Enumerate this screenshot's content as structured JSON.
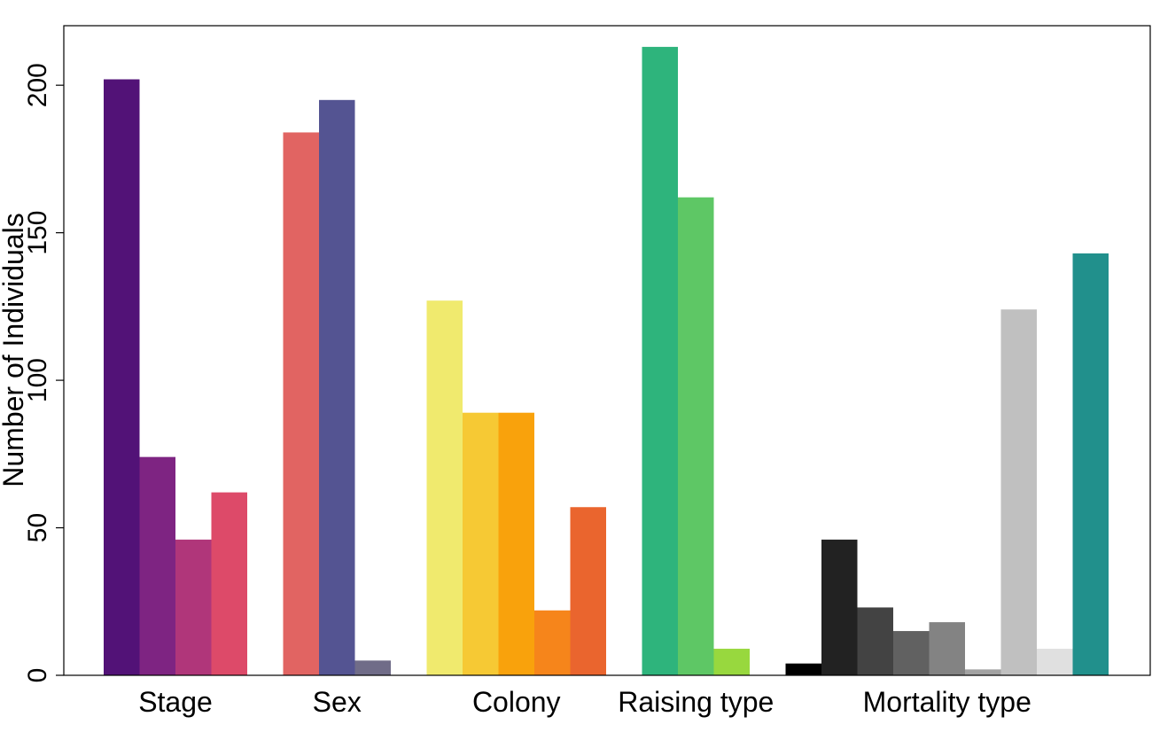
{
  "chart_data": {
    "type": "bar",
    "title": "",
    "xlabel": "",
    "ylabel": "Number of Individuals",
    "ylim": [
      0,
      220
    ],
    "yticks": [
      0,
      50,
      100,
      150,
      200
    ],
    "grid": false,
    "legend": "none",
    "groups": [
      {
        "label": "Stage",
        "values": [
          202,
          74,
          46,
          62
        ],
        "colors": [
          "#521277",
          "#7e2482",
          "#b0367a",
          "#dd4a69"
        ]
      },
      {
        "label": "Sex",
        "values": [
          184,
          195,
          5
        ],
        "colors": [
          "#e16462",
          "#545492",
          "#706c88"
        ]
      },
      {
        "label": "Colony",
        "values": [
          127,
          89,
          89,
          22,
          57
        ],
        "colors": [
          "#f0ea6e",
          "#f6c934",
          "#f9a20c",
          "#f6851b",
          "#ea652e"
        ]
      },
      {
        "label": "Raising type",
        "values": [
          213,
          162,
          9
        ],
        "colors": [
          "#2eb47c",
          "#5ec765",
          "#98d83e"
        ]
      },
      {
        "label": "Mortality type",
        "values": [
          4,
          46,
          23,
          15,
          18,
          2,
          124,
          9,
          143
        ],
        "colors": [
          "#000000",
          "#222222",
          "#434343",
          "#616161",
          "#838383",
          "#a2a2a2",
          "#c0c0c0",
          "#e0e0e0",
          "#21908c"
        ]
      }
    ]
  }
}
